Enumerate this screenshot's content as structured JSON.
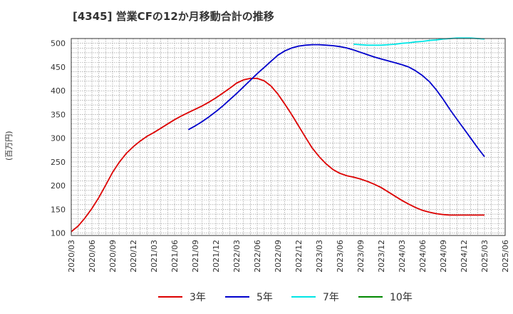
{
  "chart_data": {
    "type": "line",
    "title": "[4345]  営業CFの12か月移動合計の推移",
    "ylabel": "(百万円)",
    "xlabel": "",
    "ylim": [
      95,
      510
    ],
    "yticks": [
      100,
      150,
      200,
      250,
      300,
      350,
      400,
      450,
      500
    ],
    "xticks": [
      "2020/03",
      "2020/06",
      "2020/09",
      "2020/12",
      "2021/03",
      "2021/06",
      "2021/09",
      "2021/12",
      "2022/03",
      "2022/06",
      "2022/09",
      "2022/12",
      "2023/03",
      "2023/06",
      "2023/09",
      "2023/12",
      "2024/03",
      "2024/06",
      "2024/09",
      "2024/12",
      "2025/03",
      "2025/06"
    ],
    "grid": true,
    "legend_position": "bottom",
    "series": [
      {
        "name": "3年",
        "color": "#dd0000",
        "x": [
          "2020/03",
          "2020/04",
          "2020/05",
          "2020/06",
          "2020/07",
          "2020/08",
          "2020/09",
          "2020/10",
          "2020/11",
          "2020/12",
          "2021/01",
          "2021/02",
          "2021/03",
          "2021/04",
          "2021/05",
          "2021/06",
          "2021/07",
          "2021/08",
          "2021/09",
          "2021/10",
          "2021/11",
          "2021/12",
          "2022/01",
          "2022/02",
          "2022/03",
          "2022/04",
          "2022/05",
          "2022/06",
          "2022/07",
          "2022/08",
          "2022/09",
          "2022/10",
          "2022/11",
          "2022/12",
          "2023/01",
          "2023/02",
          "2023/03",
          "2023/04",
          "2023/05",
          "2023/06",
          "2023/07",
          "2023/08",
          "2023/09",
          "2023/10",
          "2023/11",
          "2023/12",
          "2024/01",
          "2024/02",
          "2024/03",
          "2024/04",
          "2024/05",
          "2024/06",
          "2024/07",
          "2024/08",
          "2024/09",
          "2024/10",
          "2024/11",
          "2024/12",
          "2025/01",
          "2025/02",
          "2025/03"
        ],
        "values": [
          103,
          115,
          132,
          152,
          175,
          201,
          228,
          250,
          268,
          282,
          294,
          304,
          312,
          321,
          330,
          339,
          347,
          354,
          361,
          368,
          376,
          385,
          395,
          405,
          416,
          423,
          426,
          426,
          421,
          410,
          393,
          372,
          350,
          326,
          302,
          279,
          261,
          246,
          234,
          226,
          221,
          218,
          214,
          209,
          203,
          196,
          187,
          178,
          169,
          161,
          154,
          148,
          144,
          141,
          139,
          138,
          138,
          138,
          138,
          138,
          138
        ]
      },
      {
        "name": "5年",
        "color": "#0000cc",
        "x": [
          "2021/08",
          "2021/09",
          "2021/10",
          "2021/11",
          "2021/12",
          "2022/01",
          "2022/02",
          "2022/03",
          "2022/04",
          "2022/05",
          "2022/06",
          "2022/07",
          "2022/08",
          "2022/09",
          "2022/10",
          "2022/11",
          "2022/12",
          "2023/01",
          "2023/02",
          "2023/03",
          "2023/04",
          "2023/05",
          "2023/06",
          "2023/07",
          "2023/08",
          "2023/09",
          "2023/10",
          "2023/11",
          "2023/12",
          "2024/01",
          "2024/02",
          "2024/03",
          "2024/04",
          "2024/05",
          "2024/06",
          "2024/07",
          "2024/08",
          "2024/09",
          "2024/10",
          "2024/11",
          "2024/12",
          "2025/01",
          "2025/02",
          "2025/03"
        ],
        "values": [
          318,
          326,
          335,
          345,
          356,
          368,
          381,
          394,
          408,
          422,
          436,
          449,
          462,
          475,
          484,
          490,
          494,
          496,
          497,
          497,
          496,
          495,
          493,
          490,
          486,
          481,
          476,
          471,
          467,
          463,
          459,
          455,
          450,
          442,
          432,
          419,
          402,
          382,
          360,
          340,
          320,
          300,
          280,
          261
        ]
      },
      {
        "name": "7年",
        "color": "#00e5e5",
        "x": [
          "2023/08",
          "2023/09",
          "2023/10",
          "2023/11",
          "2023/12",
          "2024/01",
          "2024/02",
          "2024/03",
          "2024/04",
          "2024/05",
          "2024/06",
          "2024/07",
          "2024/08",
          "2024/09",
          "2024/10",
          "2024/11",
          "2024/12",
          "2025/01",
          "2025/02",
          "2025/03"
        ],
        "values": [
          498,
          497,
          496,
          496,
          496,
          497,
          498,
          500,
          501,
          503,
          504,
          506,
          507,
          509,
          510,
          511,
          511,
          511,
          510,
          509
        ]
      },
      {
        "name": "10年",
        "color": "#008800",
        "x": [],
        "values": []
      }
    ]
  }
}
